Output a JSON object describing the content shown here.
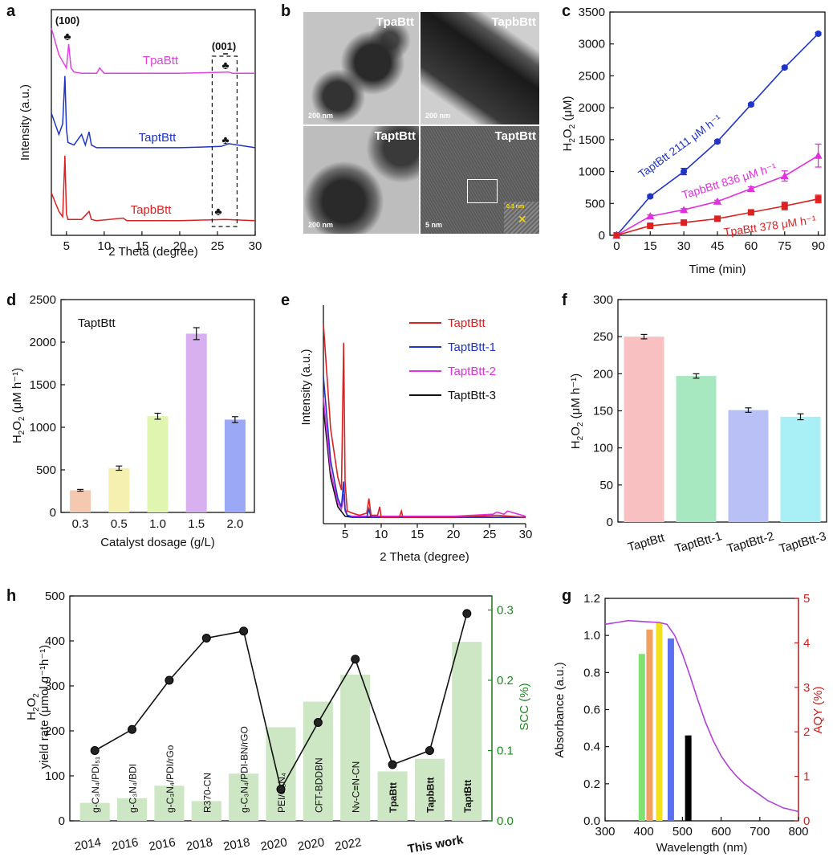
{
  "panel_letters": [
    "a",
    "b",
    "c",
    "d",
    "e",
    "f",
    "h",
    "g"
  ],
  "tem": {
    "images": [
      {
        "label": "TpaBtt",
        "scale": "200 nm"
      },
      {
        "label": "TapbBtt",
        "scale": "200 nm"
      },
      {
        "label": "TaptBtt",
        "scale": "200 nm"
      },
      {
        "label": "TaptBtt",
        "scale": "5 nm",
        "inset": "0.3 nm"
      }
    ]
  },
  "chart_data": [
    {
      "panel": "a",
      "type": "line",
      "xlabel": "2 Theta (degree)",
      "ylabel": "Intensity (a.u.)",
      "xlim": [
        3,
        30
      ],
      "xticks": [
        5,
        10,
        15,
        20,
        25,
        30
      ],
      "annotations": [
        "(100)",
        "(001)",
        "♣"
      ],
      "series": [
        {
          "name": "TpaBtt",
          "color": "#e040e0",
          "x": [
            3,
            4,
            5,
            5.3,
            5.6,
            6,
            7,
            9,
            9.4,
            10,
            15,
            20,
            26.5,
            27,
            30
          ],
          "y": [
            7.8,
            6.8,
            6.3,
            7.2,
            6.3,
            6.15,
            6.1,
            6.1,
            6.3,
            6.1,
            6.1,
            6.1,
            6.15,
            6.1,
            6.1
          ]
        },
        {
          "name": "TaptBtt",
          "color": "#1f35c8",
          "x": [
            3,
            4,
            4.5,
            4.8,
            5.0,
            5.2,
            6,
            7,
            7.5,
            8,
            8.3,
            9,
            12,
            20,
            25.5,
            26.5,
            30
          ],
          "y": [
            4.6,
            3.8,
            4.2,
            6.0,
            4.0,
            3.5,
            3.4,
            3.8,
            3.4,
            3.9,
            3.4,
            3.3,
            3.3,
            3.3,
            3.35,
            3.45,
            3.3
          ]
        },
        {
          "name": "TapbBtt",
          "color": "#dd2020",
          "x": [
            3,
            4,
            4.5,
            4.8,
            5.0,
            5.2,
            6,
            7,
            8,
            8.3,
            9,
            12.5,
            13,
            20,
            26,
            30
          ],
          "y": [
            1.6,
            0.9,
            0.7,
            3.0,
            0.8,
            0.6,
            0.6,
            0.6,
            0.9,
            0.6,
            0.55,
            0.65,
            0.55,
            0.55,
            0.6,
            0.55
          ]
        }
      ]
    },
    {
      "panel": "c",
      "type": "line",
      "xlabel": "Time (min)",
      "ylabel": "H2O2 (μM)",
      "xlim": [
        -3,
        93
      ],
      "ylim": [
        0,
        3500
      ],
      "xticks": [
        0,
        15,
        30,
        45,
        60,
        75,
        90
      ],
      "yticks": [
        0,
        500,
        1000,
        1500,
        2000,
        2500,
        3000,
        3500
      ],
      "x": [
        0,
        15,
        30,
        45,
        60,
        75,
        90
      ],
      "series": [
        {
          "name": "TaptBtt 2111 μM h⁻¹",
          "color": "#1f35c8",
          "marker": "circle",
          "values": [
            0,
            610,
            1000,
            1470,
            2050,
            2630,
            3160
          ],
          "err": [
            0,
            20,
            50,
            20,
            20,
            20,
            20
          ]
        },
        {
          "name": "TapbBtt 836 μM h⁻¹",
          "color": "#e030e0",
          "marker": "triangle",
          "values": [
            0,
            300,
            400,
            530,
            730,
            930,
            1250
          ],
          "err": [
            0,
            20,
            20,
            20,
            30,
            80,
            180
          ]
        },
        {
          "name": "TpaBtt 378  μM h⁻¹",
          "color": "#dd2020",
          "marker": "square",
          "values": [
            0,
            150,
            200,
            260,
            360,
            460,
            570
          ],
          "err": [
            0,
            20,
            20,
            30,
            30,
            60,
            60
          ]
        }
      ]
    },
    {
      "panel": "d",
      "type": "bar",
      "title": "TaptBtt",
      "xlabel": "Catalyst dosage (g/L)",
      "ylabel": "H2O2 (μM h⁻¹)",
      "ylim": [
        0,
        2500
      ],
      "yticks": [
        0,
        500,
        1000,
        1500,
        2000,
        2500
      ],
      "categories": [
        "0.3",
        "0.5",
        "1.0",
        "1.5",
        "2.0"
      ],
      "values": [
        260,
        520,
        1130,
        2100,
        1090
      ],
      "err": [
        10,
        25,
        35,
        70,
        35
      ],
      "colors": [
        "#f5c8b0",
        "#f5f0b0",
        "#e0f5b0",
        "#d8b0f0",
        "#9aa8f5"
      ]
    },
    {
      "panel": "e",
      "type": "line",
      "xlabel": "2 Theta (degree)",
      "ylabel": "Intensity (a.u.)",
      "xlim": [
        2,
        30
      ],
      "xticks": [
        5,
        10,
        15,
        20,
        25,
        30
      ],
      "series": [
        {
          "name": "TaptBtt",
          "color": "#dd2020",
          "x": [
            2,
            3,
            4,
            4.5,
            4.8,
            5.0,
            5.3,
            6,
            7,
            8,
            8.3,
            8.6,
            9.5,
            9.8,
            10,
            12.5,
            12.8,
            13,
            20,
            26,
            30
          ],
          "y": [
            0.95,
            0.45,
            0.22,
            0.16,
            0.86,
            0.2,
            0.06,
            0.05,
            0.04,
            0.05,
            0.12,
            0.04,
            0.04,
            0.08,
            0.03,
            0.03,
            0.06,
            0.03,
            0.03,
            0.04,
            0.03
          ]
        },
        {
          "name": "TaptBtt-1",
          "color": "#1f35c8",
          "x": [
            2,
            3,
            4,
            4.5,
            4.8,
            5.0,
            5.3,
            6,
            8,
            8.3,
            8.6,
            10,
            20,
            30
          ],
          "y": [
            0.7,
            0.3,
            0.12,
            0.08,
            0.2,
            0.07,
            0.04,
            0.03,
            0.03,
            0.07,
            0.03,
            0.03,
            0.03,
            0.03
          ]
        },
        {
          "name": "TaptBtt-2",
          "color": "#e030e0",
          "x": [
            2,
            3,
            4,
            4.5,
            4.8,
            5.0,
            5.3,
            6,
            10,
            20,
            25.5,
            26,
            27,
            27.5,
            30
          ],
          "y": [
            0.6,
            0.25,
            0.1,
            0.07,
            0.14,
            0.06,
            0.04,
            0.035,
            0.035,
            0.035,
            0.045,
            0.055,
            0.045,
            0.06,
            0.035
          ]
        },
        {
          "name": "TaptBtt-3",
          "color": "#111111",
          "x": [
            2,
            3,
            4,
            5,
            6,
            10,
            20,
            30
          ],
          "y": [
            0.55,
            0.22,
            0.08,
            0.035,
            0.03,
            0.03,
            0.03,
            0.03
          ]
        }
      ]
    },
    {
      "panel": "f",
      "type": "bar",
      "xlabel": "",
      "ylabel": "H2O2 (μM h⁻¹)",
      "ylim": [
        0,
        300
      ],
      "yticks": [
        0,
        50,
        100,
        150,
        200,
        250,
        300
      ],
      "categories": [
        "TaptBtt",
        "TaptBtt-1",
        "TaptBtt-2",
        "TaptBtt-3"
      ],
      "values": [
        250,
        197,
        151,
        142
      ],
      "err": [
        3,
        3,
        3,
        4
      ],
      "colors": [
        "#f8c0c0",
        "#a8e8c0",
        "#b8c0f5",
        "#a8f0f5"
      ]
    },
    {
      "panel": "h",
      "type": "bar",
      "xlabel": "",
      "ylabel": "H2O2 yield rate (μmol g⁻¹h⁻¹)",
      "y2label": "SCC (%)",
      "ylim": [
        0,
        500
      ],
      "yticks": [
        0,
        100,
        200,
        300,
        400,
        500
      ],
      "y2lim": [
        0,
        0.32
      ],
      "y2ticks": [
        0.0,
        0.1,
        0.2,
        0.3
      ],
      "categories": [
        "g-C3N4/PDI",
        "g-C3N4/BDI",
        "g-C3N4/PDI/rGo",
        "R370-CN",
        "g-C3N4/PDI-BN/rGO",
        "PEI/C3N4",
        "CFT-BDDBN",
        "Nv-C≡N-CN",
        "TpaBtt",
        "TapbBtt",
        "TaptBtt"
      ],
      "bar_labels": [
        "g-C₃N₄/PDI₅₁",
        "g-C₃N₄/BDI",
        "g-C₃N₄/PDI/rGo",
        "R370-CN",
        "g-C₃N₄/PDI-BN/rGO",
        "PEI/C₃N₄",
        "CFT-BDDBN",
        "Nv-C≡N-CN",
        "TpaBtt",
        "TapbBtt",
        "TaptBtt"
      ],
      "years": [
        "2014",
        "2016",
        "2016",
        "2018",
        "2018",
        "2020",
        "2020",
        "2022",
        "This work"
      ],
      "values": [
        40,
        50,
        78,
        44,
        105,
        208,
        265,
        325,
        110,
        138,
        398
      ],
      "scc": [
        0.1,
        0.13,
        0.2,
        0.26,
        0.27,
        0.045,
        0.14,
        0.23,
        0.08,
        0.1,
        0.295
      ],
      "bar_color": "#cde6c4",
      "scc_color": "#111111",
      "y2_color": "#1a8a1a"
    },
    {
      "panel": "g",
      "type": "area",
      "xlabel": "Wavelength (nm)",
      "ylabel": "Absorbance (a.u.)",
      "y2label": "AQY (%)",
      "xlim": [
        300,
        800
      ],
      "xticks": [
        300,
        400,
        500,
        600,
        700,
        800
      ],
      "ylim": [
        0,
        1.2
      ],
      "yticks": [
        0.0,
        0.2,
        0.4,
        0.6,
        0.8,
        1.0,
        1.2
      ],
      "y2lim": [
        0,
        5
      ],
      "y2ticks": [
        0,
        1,
        2,
        3,
        4,
        5
      ],
      "absorbance": {
        "color": "#b040d8",
        "x": [
          300,
          330,
          360,
          400,
          440,
          460,
          480,
          500,
          520,
          540,
          560,
          580,
          600,
          620,
          640,
          660,
          680,
          700,
          720,
          740,
          760,
          780,
          800
        ],
        "y": [
          1.06,
          1.07,
          1.08,
          1.075,
          1.07,
          1.06,
          1.0,
          0.9,
          0.78,
          0.65,
          0.53,
          0.43,
          0.35,
          0.29,
          0.24,
          0.2,
          0.17,
          0.14,
          0.11,
          0.09,
          0.07,
          0.06,
          0.05
        ]
      },
      "aqy": {
        "wavelengths": [
          395,
          415,
          440,
          470,
          515
        ],
        "values": [
          3.75,
          4.3,
          4.45,
          4.1,
          1.92
        ],
        "colors": [
          "#80e070",
          "#f0a060",
          "#f0e020",
          "#5a70f0",
          "#000000"
        ]
      }
    }
  ]
}
